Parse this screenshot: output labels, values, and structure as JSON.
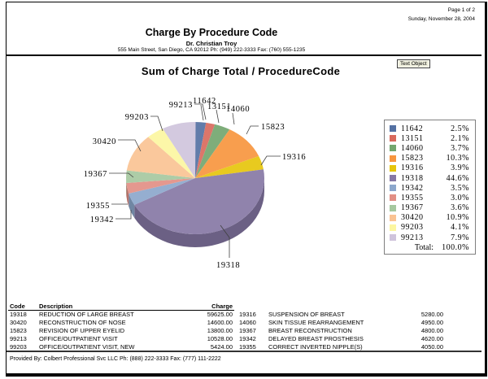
{
  "page": {
    "page_indicator": "Page 1 of 2",
    "date": "Sunday, November 28, 2004",
    "report_title": "Charge By Procedure Code",
    "provider_name": "Dr. Christian Troy",
    "provider_address": "555 Main Street, San Diego, CA 92012 Ph: (949) 222-3333 Fax: (760) 555-1235",
    "text_object_label": "Text Object",
    "footer": "Provided By: Colbert Professional Svc LLC Ph: (888) 222-3333 Fax: (777) 111-2222"
  },
  "chart_data": {
    "type": "pie",
    "title": "Sum of Charge Total / ProcedureCode",
    "style": "3d-pie",
    "legend_position": "right",
    "total_label": "Total:",
    "total_value": "100.0%",
    "slices": [
      {
        "code": "11642",
        "value_pct": 2.5,
        "pct_label": "2.5%",
        "color": "#5471a3"
      },
      {
        "code": "13151",
        "value_pct": 2.1,
        "pct_label": "2.1%",
        "color": "#d96a5d"
      },
      {
        "code": "14060",
        "value_pct": 3.7,
        "pct_label": "3.7%",
        "color": "#73a66e"
      },
      {
        "code": "15823",
        "value_pct": 10.3,
        "pct_label": "10.3%",
        "color": "#f7963f"
      },
      {
        "code": "19316",
        "value_pct": 3.9,
        "pct_label": "3.9%",
        "color": "#e6c50c"
      },
      {
        "code": "19318",
        "value_pct": 44.6,
        "pct_label": "44.6%",
        "color": "#8678a5"
      },
      {
        "code": "19342",
        "value_pct": 3.5,
        "pct_label": "3.5%",
        "color": "#8ca7cc"
      },
      {
        "code": "19355",
        "value_pct": 3.0,
        "pct_label": "3.0%",
        "color": "#e28f85"
      },
      {
        "code": "19367",
        "value_pct": 3.6,
        "pct_label": "3.6%",
        "color": "#a6c89f"
      },
      {
        "code": "30420",
        "value_pct": 10.9,
        "pct_label": "10.9%",
        "color": "#fac393"
      },
      {
        "code": "99203",
        "value_pct": 4.1,
        "pct_label": "4.1%",
        "color": "#fcf6a0"
      },
      {
        "code": "99213",
        "value_pct": 7.9,
        "pct_label": "7.9%",
        "color": "#cfc4dc"
      }
    ]
  },
  "table": {
    "headers": {
      "code": "Code",
      "description": "Description",
      "charge": "Charge"
    },
    "left_rows": [
      {
        "code": "19318",
        "description": "REDUCTION OF LARGE BREAST",
        "charge": "59625.00"
      },
      {
        "code": "30420",
        "description": "RECONSTRUCTION OF NOSE",
        "charge": "14600.00"
      },
      {
        "code": "15823",
        "description": "REVISION OF UPPER EYELID",
        "charge": "13800.00"
      },
      {
        "code": "99213",
        "description": "OFFICE/OUTPATIENT VISIT",
        "charge": "10528.00"
      },
      {
        "code": "99203",
        "description": "OFFICE/OUTPATIENT VISIT, NEW",
        "charge": "5424.00"
      }
    ],
    "right_rows": [
      {
        "code": "19316",
        "description": "SUSPENSION OF BREAST",
        "charge": "5280.00"
      },
      {
        "code": "14060",
        "description": "SKIN TISSUE REARRANGEMENT",
        "charge": "4950.00"
      },
      {
        "code": "19367",
        "description": "BREAST RECONSTRUCTION",
        "charge": "4800.00"
      },
      {
        "code": "19342",
        "description": "DELAYED BREAST PROSTHESIS",
        "charge": "4620.00"
      },
      {
        "code": "19355",
        "description": "CORRECT INVERTED NIPPLE(S)",
        "charge": "4050.00"
      }
    ]
  }
}
